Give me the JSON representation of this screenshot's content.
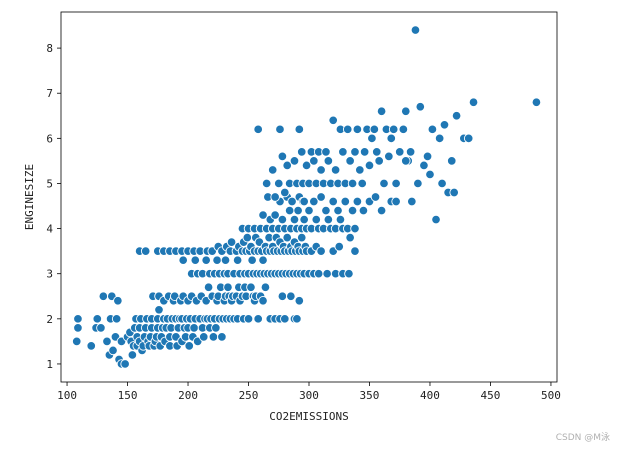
{
  "chart_data": {
    "type": "scatter",
    "xlabel": "CO2EMISSIONS",
    "ylabel": "ENGINESIZE",
    "xlim": [
      95,
      505
    ],
    "ylim": [
      0.6,
      8.8
    ],
    "xticks": [
      100,
      150,
      200,
      250,
      300,
      350,
      400,
      450,
      500
    ],
    "yticks": [
      1,
      2,
      3,
      4,
      5,
      6,
      7,
      8
    ],
    "grid": false,
    "marker_color": "#1f77b4",
    "marker_edge_color": "#ffffff",
    "points": [
      [
        108,
        1.5
      ],
      [
        109,
        1.8
      ],
      [
        109,
        2.0
      ],
      [
        120,
        1.4
      ],
      [
        124,
        1.8
      ],
      [
        125,
        2.0
      ],
      [
        128,
        1.8
      ],
      [
        130,
        2.5
      ],
      [
        133,
        1.5
      ],
      [
        135,
        1.2
      ],
      [
        136,
        2.0
      ],
      [
        137,
        2.5
      ],
      [
        138,
        1.3
      ],
      [
        140,
        1.6
      ],
      [
        141,
        2.0
      ],
      [
        142,
        2.4
      ],
      [
        143,
        1.1
      ],
      [
        145,
        1.0
      ],
      [
        145,
        1.5
      ],
      [
        148,
        1.0
      ],
      [
        150,
        1.6
      ],
      [
        152,
        1.7
      ],
      [
        153,
        1.5
      ],
      [
        154,
        1.2
      ],
      [
        155,
        1.4
      ],
      [
        156,
        1.8
      ],
      [
        157,
        2.0
      ],
      [
        158,
        1.4
      ],
      [
        158,
        1.6
      ],
      [
        160,
        1.5
      ],
      [
        160,
        1.8
      ],
      [
        161,
        2.0
      ],
      [
        162,
        1.3
      ],
      [
        163,
        1.4
      ],
      [
        164,
        1.6
      ],
      [
        165,
        1.8
      ],
      [
        166,
        2.0
      ],
      [
        167,
        1.5
      ],
      [
        168,
        1.4
      ],
      [
        169,
        1.6
      ],
      [
        170,
        1.8
      ],
      [
        170,
        2.0
      ],
      [
        171,
        2.5
      ],
      [
        172,
        1.4
      ],
      [
        173,
        1.5
      ],
      [
        174,
        1.6
      ],
      [
        175,
        1.8
      ],
      [
        175,
        2.0
      ],
      [
        176,
        2.2
      ],
      [
        176,
        2.5
      ],
      [
        177,
        1.4
      ],
      [
        178,
        1.6
      ],
      [
        179,
        1.8
      ],
      [
        180,
        2.0
      ],
      [
        180,
        2.4
      ],
      [
        181,
        1.5
      ],
      [
        182,
        1.8
      ],
      [
        183,
        2.0
      ],
      [
        184,
        2.5
      ],
      [
        185,
        1.4
      ],
      [
        185,
        1.6
      ],
      [
        186,
        1.8
      ],
      [
        187,
        2.0
      ],
      [
        188,
        2.4
      ],
      [
        189,
        2.5
      ],
      [
        190,
        1.6
      ],
      [
        190,
        2.0
      ],
      [
        191,
        1.4
      ],
      [
        192,
        1.8
      ],
      [
        193,
        2.0
      ],
      [
        194,
        2.4
      ],
      [
        195,
        1.5
      ],
      [
        195,
        2.0
      ],
      [
        196,
        2.5
      ],
      [
        197,
        1.8
      ],
      [
        198,
        1.6
      ],
      [
        199,
        2.0
      ],
      [
        200,
        2.4
      ],
      [
        200,
        1.8
      ],
      [
        201,
        1.4
      ],
      [
        202,
        2.0
      ],
      [
        203,
        2.5
      ],
      [
        204,
        1.6
      ],
      [
        205,
        1.8
      ],
      [
        206,
        2.0
      ],
      [
        207,
        2.4
      ],
      [
        208,
        1.5
      ],
      [
        210,
        2.0
      ],
      [
        211,
        2.5
      ],
      [
        212,
        1.8
      ],
      [
        213,
        1.6
      ],
      [
        214,
        2.0
      ],
      [
        215,
        2.4
      ],
      [
        216,
        2.0
      ],
      [
        217,
        2.7
      ],
      [
        218,
        1.8
      ],
      [
        219,
        2.0
      ],
      [
        220,
        2.5
      ],
      [
        221,
        1.6
      ],
      [
        222,
        2.0
      ],
      [
        223,
        1.8
      ],
      [
        224,
        2.4
      ],
      [
        225,
        2.5
      ],
      [
        226,
        2.0
      ],
      [
        227,
        2.7
      ],
      [
        228,
        1.6
      ],
      [
        229,
        2.0
      ],
      [
        230,
        2.4
      ],
      [
        231,
        2.5
      ],
      [
        232,
        2.0
      ],
      [
        233,
        2.7
      ],
      [
        234,
        2.5
      ],
      [
        235,
        2.0
      ],
      [
        236,
        2.4
      ],
      [
        237,
        2.5
      ],
      [
        238,
        2.0
      ],
      [
        240,
        2.5
      ],
      [
        241,
        2.0
      ],
      [
        242,
        2.7
      ],
      [
        243,
        2.4
      ],
      [
        245,
        2.5
      ],
      [
        246,
        2.0
      ],
      [
        247,
        2.7
      ],
      [
        248,
        2.5
      ],
      [
        250,
        2.0
      ],
      [
        252,
        2.7
      ],
      [
        254,
        2.5
      ],
      [
        255,
        2.4
      ],
      [
        256,
        2.5
      ],
      [
        258,
        2.0
      ],
      [
        260,
        2.5
      ],
      [
        262,
        2.4
      ],
      [
        264,
        2.7
      ],
      [
        268,
        2.0
      ],
      [
        272,
        2.0
      ],
      [
        276,
        2.0
      ],
      [
        278,
        2.5
      ],
      [
        280,
        2.0
      ],
      [
        285,
        2.5
      ],
      [
        288,
        2.0
      ],
      [
        290,
        2.0
      ],
      [
        292,
        2.4
      ],
      [
        160,
        3.5
      ],
      [
        165,
        3.5
      ],
      [
        175,
        3.5
      ],
      [
        180,
        3.5
      ],
      [
        185,
        3.5
      ],
      [
        190,
        3.5
      ],
      [
        195,
        3.5
      ],
      [
        196,
        3.3
      ],
      [
        200,
        3.5
      ],
      [
        203,
        3.0
      ],
      [
        205,
        3.5
      ],
      [
        206,
        3.3
      ],
      [
        208,
        3.0
      ],
      [
        210,
        3.5
      ],
      [
        212,
        3.0
      ],
      [
        215,
        3.3
      ],
      [
        216,
        3.5
      ],
      [
        218,
        3.0
      ],
      [
        220,
        3.5
      ],
      [
        222,
        3.0
      ],
      [
        224,
        3.3
      ],
      [
        225,
        3.6
      ],
      [
        226,
        3.0
      ],
      [
        228,
        3.5
      ],
      [
        230,
        3.0
      ],
      [
        231,
        3.3
      ],
      [
        232,
        3.6
      ],
      [
        233,
        3.0
      ],
      [
        235,
        3.5
      ],
      [
        236,
        3.7
      ],
      [
        238,
        3.0
      ],
      [
        240,
        3.5
      ],
      [
        241,
        3.3
      ],
      [
        242,
        3.6
      ],
      [
        243,
        3.0
      ],
      [
        245,
        3.5
      ],
      [
        246,
        3.7
      ],
      [
        247,
        3.0
      ],
      [
        248,
        3.5
      ],
      [
        249,
        3.8
      ],
      [
        250,
        3.0
      ],
      [
        251,
        3.5
      ],
      [
        252,
        3.6
      ],
      [
        253,
        3.3
      ],
      [
        254,
        3.0
      ],
      [
        255,
        3.5
      ],
      [
        256,
        3.8
      ],
      [
        257,
        3.0
      ],
      [
        258,
        3.5
      ],
      [
        259,
        3.7
      ],
      [
        260,
        3.0
      ],
      [
        261,
        3.5
      ],
      [
        262,
        3.3
      ],
      [
        263,
        3.0
      ],
      [
        264,
        3.6
      ],
      [
        265,
        3.5
      ],
      [
        266,
        3.0
      ],
      [
        267,
        3.8
      ],
      [
        268,
        3.5
      ],
      [
        269,
        3.0
      ],
      [
        270,
        3.6
      ],
      [
        271,
        3.5
      ],
      [
        272,
        3.0
      ],
      [
        273,
        3.8
      ],
      [
        274,
        3.5
      ],
      [
        275,
        3.0
      ],
      [
        276,
        3.7
      ],
      [
        277,
        3.5
      ],
      [
        278,
        3.0
      ],
      [
        279,
        3.6
      ],
      [
        280,
        3.5
      ],
      [
        281,
        3.0
      ],
      [
        282,
        3.8
      ],
      [
        283,
        3.5
      ],
      [
        284,
        3.0
      ],
      [
        285,
        3.6
      ],
      [
        286,
        3.5
      ],
      [
        287,
        3.0
      ],
      [
        288,
        3.7
      ],
      [
        289,
        3.5
      ],
      [
        290,
        3.0
      ],
      [
        291,
        3.6
      ],
      [
        292,
        3.5
      ],
      [
        293,
        3.0
      ],
      [
        294,
        3.8
      ],
      [
        295,
        3.5
      ],
      [
        296,
        3.0
      ],
      [
        297,
        3.6
      ],
      [
        298,
        3.5
      ],
      [
        300,
        3.0
      ],
      [
        302,
        3.5
      ],
      [
        304,
        3.0
      ],
      [
        306,
        3.6
      ],
      [
        308,
        3.0
      ],
      [
        310,
        3.5
      ],
      [
        315,
        3.0
      ],
      [
        320,
        3.5
      ],
      [
        322,
        3.0
      ],
      [
        325,
        3.6
      ],
      [
        328,
        3.0
      ],
      [
        333,
        3.0
      ],
      [
        338,
        3.5
      ],
      [
        245,
        4.0
      ],
      [
        250,
        4.0
      ],
      [
        255,
        4.0
      ],
      [
        260,
        4.0
      ],
      [
        262,
        4.3
      ],
      [
        265,
        4.0
      ],
      [
        268,
        4.2
      ],
      [
        270,
        4.0
      ],
      [
        272,
        4.3
      ],
      [
        275,
        4.0
      ],
      [
        276,
        4.6
      ],
      [
        278,
        4.2
      ],
      [
        280,
        4.0
      ],
      [
        282,
        4.7
      ],
      [
        284,
        4.4
      ],
      [
        285,
        4.0
      ],
      [
        286,
        4.6
      ],
      [
        288,
        4.2
      ],
      [
        290,
        4.0
      ],
      [
        291,
        4.4
      ],
      [
        292,
        4.7
      ],
      [
        294,
        4.0
      ],
      [
        295,
        4.6
      ],
      [
        296,
        4.2
      ],
      [
        298,
        4.0
      ],
      [
        300,
        4.4
      ],
      [
        302,
        4.0
      ],
      [
        304,
        4.6
      ],
      [
        306,
        4.2
      ],
      [
        308,
        4.0
      ],
      [
        310,
        4.7
      ],
      [
        312,
        4.0
      ],
      [
        314,
        4.4
      ],
      [
        316,
        4.2
      ],
      [
        318,
        4.0
      ],
      [
        320,
        4.6
      ],
      [
        322,
        4.0
      ],
      [
        324,
        4.4
      ],
      [
        326,
        4.2
      ],
      [
        328,
        4.0
      ],
      [
        330,
        4.6
      ],
      [
        332,
        4.0
      ],
      [
        334,
        3.8
      ],
      [
        336,
        4.4
      ],
      [
        338,
        4.0
      ],
      [
        340,
        4.6
      ],
      [
        345,
        4.4
      ],
      [
        350,
        4.6
      ],
      [
        355,
        4.7
      ],
      [
        360,
        4.4
      ],
      [
        258,
        6.2
      ],
      [
        265,
        5.0
      ],
      [
        266,
        4.7
      ],
      [
        270,
        5.3
      ],
      [
        272,
        4.7
      ],
      [
        275,
        5.0
      ],
      [
        276,
        6.2
      ],
      [
        278,
        5.6
      ],
      [
        280,
        4.8
      ],
      [
        282,
        5.4
      ],
      [
        284,
        5.0
      ],
      [
        286,
        4.6
      ],
      [
        288,
        5.5
      ],
      [
        290,
        5.0
      ],
      [
        292,
        6.2
      ],
      [
        294,
        5.7
      ],
      [
        295,
        5.0
      ],
      [
        296,
        4.6
      ],
      [
        298,
        5.4
      ],
      [
        300,
        5.0
      ],
      [
        302,
        5.7
      ],
      [
        304,
        5.5
      ],
      [
        306,
        5.0
      ],
      [
        308,
        5.7
      ],
      [
        310,
        5.3
      ],
      [
        312,
        5.0
      ],
      [
        314,
        5.7
      ],
      [
        316,
        5.5
      ],
      [
        318,
        5.0
      ],
      [
        320,
        6.4
      ],
      [
        322,
        5.3
      ],
      [
        324,
        5.0
      ],
      [
        326,
        6.2
      ],
      [
        328,
        5.7
      ],
      [
        330,
        5.0
      ],
      [
        332,
        6.2
      ],
      [
        334,
        5.5
      ],
      [
        336,
        5.0
      ],
      [
        338,
        5.7
      ],
      [
        340,
        6.2
      ],
      [
        342,
        5.3
      ],
      [
        344,
        5.0
      ],
      [
        346,
        5.7
      ],
      [
        348,
        6.2
      ],
      [
        350,
        5.4
      ],
      [
        352,
        6.0
      ],
      [
        354,
        6.2
      ],
      [
        356,
        5.7
      ],
      [
        358,
        5.5
      ],
      [
        360,
        6.6
      ],
      [
        362,
        5.0
      ],
      [
        364,
        6.2
      ],
      [
        366,
        5.6
      ],
      [
        368,
        6.0
      ],
      [
        370,
        6.2
      ],
      [
        372,
        5.0
      ],
      [
        375,
        5.7
      ],
      [
        378,
        6.2
      ],
      [
        380,
        6.6
      ],
      [
        382,
        5.5
      ],
      [
        384,
        5.7
      ],
      [
        385,
        4.6
      ],
      [
        388,
        8.4
      ],
      [
        390,
        5.0
      ],
      [
        392,
        6.7
      ],
      [
        395,
        5.4
      ],
      [
        398,
        5.6
      ],
      [
        400,
        5.2
      ],
      [
        402,
        6.2
      ],
      [
        405,
        4.2
      ],
      [
        408,
        6.0
      ],
      [
        410,
        5.0
      ],
      [
        412,
        6.3
      ],
      [
        415,
        4.8
      ],
      [
        418,
        5.5
      ],
      [
        420,
        4.8
      ],
      [
        422,
        6.5
      ],
      [
        428,
        6.0
      ],
      [
        432,
        6.0
      ],
      [
        436,
        6.8
      ],
      [
        488,
        6.8
      ],
      [
        368,
        4.6
      ],
      [
        372,
        4.6
      ],
      [
        380,
        5.5
      ]
    ]
  },
  "watermark": "CSDN @M泳"
}
